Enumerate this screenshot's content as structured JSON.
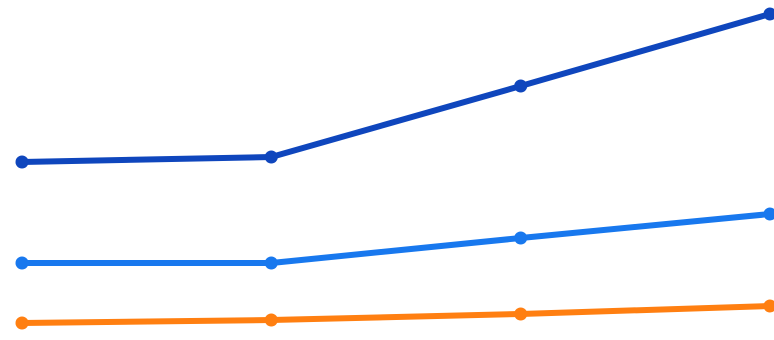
{
  "chart_data": {
    "type": "line",
    "title": "",
    "xlabel": "",
    "ylabel": "",
    "legend": "none",
    "grid": false,
    "ylim": [
      0,
      340
    ],
    "x": [
      1,
      2,
      3,
      4
    ],
    "series": [
      {
        "color": "#0f46bd",
        "values": [
          178,
          183,
          254,
          326
        ]
      },
      {
        "color": "#1878ee",
        "values": [
          77,
          77,
          102,
          126
        ]
      },
      {
        "color": "#ff7f11",
        "values": [
          17,
          20,
          26,
          34
        ]
      }
    ]
  }
}
